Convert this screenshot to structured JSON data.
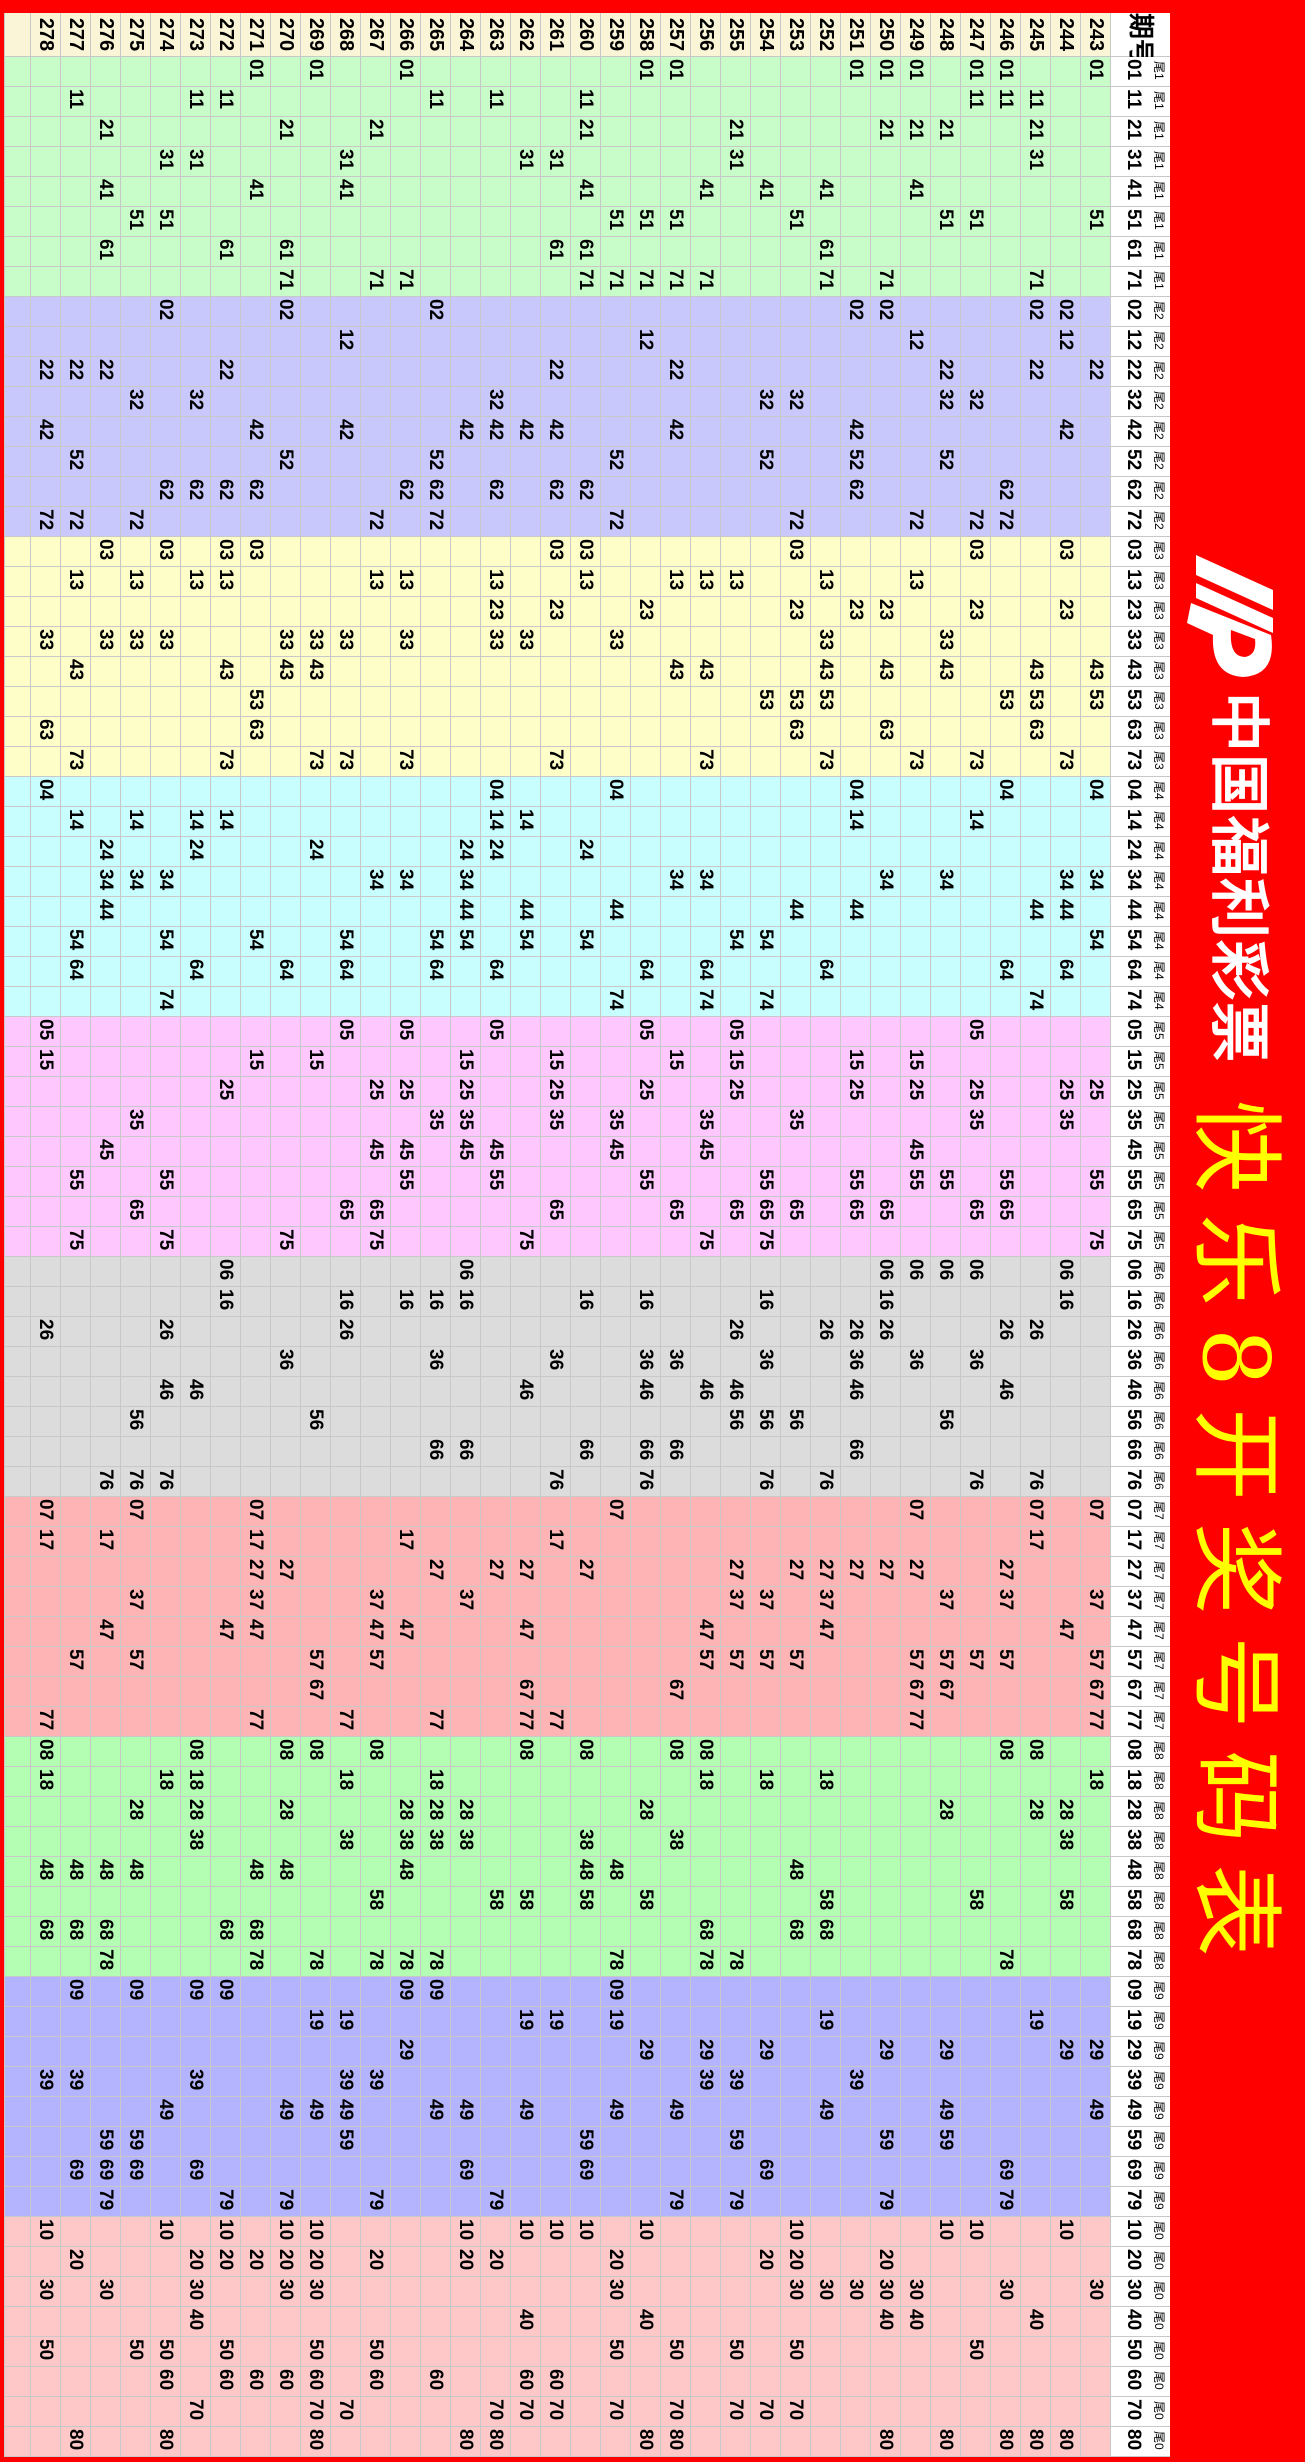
{
  "banner": {
    "logo_text": "cp",
    "organization": "中国福利彩票",
    "title": "快乐8开奖号码表"
  },
  "colors": {
    "banner_bg": "#ff0000",
    "title_color": "#ffff00",
    "period_bg": "#faf5d6",
    "tail_bg": [
      "#c8fcc8",
      "#c8c8fc",
      "#fefec8",
      "#c8fefe",
      "#fec8fe",
      "#dcdcdc",
      "#feb4b4",
      "#b4feb4",
      "#b4b4fe",
      "#fec8c8"
    ]
  },
  "table": {
    "period_header": "期号",
    "tail_groups": [
      {
        "label": "尾1",
        "numbers": [
          "01",
          "11",
          "21",
          "31",
          "41",
          "51",
          "61",
          "71"
        ]
      },
      {
        "label": "尾2",
        "numbers": [
          "02",
          "12",
          "22",
          "32",
          "42",
          "52",
          "62",
          "72"
        ]
      },
      {
        "label": "尾3",
        "numbers": [
          "03",
          "13",
          "23",
          "33",
          "43",
          "53",
          "63",
          "73"
        ]
      },
      {
        "label": "尾4",
        "numbers": [
          "04",
          "14",
          "24",
          "34",
          "44",
          "54",
          "64",
          "74"
        ]
      },
      {
        "label": "尾5",
        "numbers": [
          "05",
          "15",
          "25",
          "35",
          "45",
          "55",
          "65",
          "75"
        ]
      },
      {
        "label": "尾6",
        "numbers": [
          "06",
          "16",
          "26",
          "36",
          "46",
          "56",
          "66",
          "76"
        ]
      },
      {
        "label": "尾7",
        "numbers": [
          "07",
          "17",
          "27",
          "37",
          "47",
          "57",
          "67",
          "77"
        ]
      },
      {
        "label": "尾8",
        "numbers": [
          "08",
          "18",
          "28",
          "38",
          "48",
          "58",
          "68",
          "78"
        ]
      },
      {
        "label": "尾9",
        "numbers": [
          "09",
          "19",
          "29",
          "39",
          "49",
          "59",
          "69",
          "79"
        ]
      },
      {
        "label": "尾0",
        "numbers": [
          "10",
          "20",
          "30",
          "40",
          "50",
          "60",
          "70",
          "80"
        ]
      }
    ],
    "rows": [
      {
        "period": "243",
        "numbers": [
          "01",
          "51",
          "22",
          "43",
          "53",
          "04",
          "34",
          "54",
          "25",
          "55",
          "75",
          "07",
          "37",
          "57",
          "67",
          "77",
          "18",
          "29",
          "49",
          "30"
        ]
      },
      {
        "period": "244",
        "numbers": [
          "02",
          "12",
          "42",
          "03",
          "23",
          "73",
          "34",
          "44",
          "64",
          "25",
          "35",
          "06",
          "16",
          "47",
          "28",
          "38",
          "58",
          "29",
          "10",
          "80"
        ]
      },
      {
        "period": "245",
        "numbers": [
          "11",
          "21",
          "31",
          "71",
          "02",
          "22",
          "43",
          "53",
          "63",
          "44",
          "74",
          "26",
          "76",
          "07",
          "17",
          "08",
          "28",
          "19",
          "40",
          "80"
        ]
      },
      {
        "period": "246",
        "numbers": [
          "01",
          "11",
          "62",
          "72",
          "53",
          "04",
          "64",
          "55",
          "65",
          "26",
          "46",
          "27",
          "37",
          "57",
          "08",
          "78",
          "69",
          "79",
          "30",
          "80"
        ]
      },
      {
        "period": "247",
        "numbers": [
          "01",
          "11",
          "51",
          "32",
          "72",
          "03",
          "23",
          "73",
          "14",
          "05",
          "25",
          "35",
          "65",
          "06",
          "36",
          "76",
          "57",
          "58",
          "10",
          "50"
        ]
      },
      {
        "period": "248",
        "numbers": [
          "21",
          "51",
          "22",
          "32",
          "52",
          "33",
          "43",
          "34",
          "55",
          "06",
          "56",
          "37",
          "57",
          "67",
          "28",
          "29",
          "49",
          "59",
          "10",
          "80"
        ]
      },
      {
        "period": "249",
        "numbers": [
          "01",
          "21",
          "41",
          "12",
          "72",
          "13",
          "73",
          "15",
          "25",
          "45",
          "55",
          "06",
          "36",
          "07",
          "27",
          "57",
          "67",
          "77",
          "30",
          "40"
        ]
      },
      {
        "period": "250",
        "numbers": [
          "01",
          "21",
          "71",
          "02",
          "23",
          "43",
          "63",
          "34",
          "65",
          "06",
          "16",
          "26",
          "27",
          "29",
          "59",
          "79",
          "20",
          "30",
          "40",
          "80"
        ]
      },
      {
        "period": "251",
        "numbers": [
          "01",
          "02",
          "42",
          "52",
          "62",
          "23",
          "04",
          "14",
          "44",
          "15",
          "25",
          "55",
          "65",
          "26",
          "36",
          "46",
          "66",
          "27",
          "39",
          "30"
        ]
      },
      {
        "period": "252",
        "numbers": [
          "41",
          "61",
          "71",
          "13",
          "33",
          "43",
          "53",
          "73",
          "64",
          "26",
          "76",
          "27",
          "37",
          "47",
          "18",
          "58",
          "68",
          "19",
          "49",
          "30"
        ]
      },
      {
        "period": "253",
        "numbers": [
          "51",
          "32",
          "72",
          "03",
          "23",
          "53",
          "63",
          "44",
          "35",
          "65",
          "56",
          "27",
          "57",
          "48",
          "68",
          "10",
          "20",
          "30",
          "50",
          "70"
        ]
      },
      {
        "period": "254",
        "numbers": [
          "41",
          "32",
          "52",
          "53",
          "54",
          "74",
          "55",
          "65",
          "75",
          "16",
          "36",
          "56",
          "76",
          "37",
          "57",
          "18",
          "29",
          "69",
          "20",
          "70"
        ]
      },
      {
        "period": "255",
        "numbers": [
          "21",
          "31",
          "13",
          "54",
          "05",
          "15",
          "25",
          "65",
          "26",
          "46",
          "56",
          "27",
          "37",
          "57",
          "78",
          "39",
          "59",
          "79",
          "50",
          "70"
        ]
      },
      {
        "period": "256",
        "numbers": [
          "41",
          "71",
          "13",
          "43",
          "73",
          "34",
          "64",
          "74",
          "35",
          "45",
          "75",
          "46",
          "47",
          "57",
          "08",
          "18",
          "68",
          "78",
          "29",
          "39"
        ]
      },
      {
        "period": "257",
        "numbers": [
          "01",
          "51",
          "71",
          "22",
          "42",
          "13",
          "43",
          "34",
          "15",
          "65",
          "36",
          "66",
          "67",
          "08",
          "38",
          "49",
          "79",
          "50",
          "70",
          "80"
        ]
      },
      {
        "period": "258",
        "numbers": [
          "01",
          "51",
          "71",
          "12",
          "23",
          "64",
          "05",
          "25",
          "55",
          "16",
          "36",
          "46",
          "66",
          "76",
          "28",
          "58",
          "29",
          "10",
          "40",
          "80"
        ]
      },
      {
        "period": "259",
        "numbers": [
          "51",
          "71",
          "52",
          "72",
          "33",
          "04",
          "44",
          "74",
          "35",
          "45",
          "07",
          "48",
          "78",
          "09",
          "19",
          "49",
          "20",
          "30",
          "50",
          "70"
        ]
      },
      {
        "period": "260",
        "numbers": [
          "11",
          "21",
          "41",
          "61",
          "71",
          "62",
          "03",
          "13",
          "24",
          "54",
          "16",
          "66",
          "27",
          "08",
          "38",
          "48",
          "58",
          "59",
          "69",
          "10"
        ]
      },
      {
        "period": "261",
        "numbers": [
          "31",
          "61",
          "22",
          "42",
          "62",
          "03",
          "23",
          "73",
          "15",
          "25",
          "35",
          "65",
          "36",
          "76",
          "17",
          "77",
          "19",
          "10",
          "60",
          "70"
        ]
      },
      {
        "period": "262",
        "numbers": [
          "31",
          "42",
          "33",
          "14",
          "44",
          "54",
          "75",
          "46",
          "27",
          "47",
          "67",
          "77",
          "08",
          "58",
          "19",
          "49",
          "10",
          "40",
          "60",
          "70"
        ]
      },
      {
        "period": "263",
        "numbers": [
          "11",
          "32",
          "42",
          "62",
          "13",
          "23",
          "33",
          "04",
          "14",
          "24",
          "64",
          "05",
          "45",
          "55",
          "27",
          "58",
          "79",
          "20",
          "70",
          "80"
        ]
      },
      {
        "period": "264",
        "numbers": [
          "42",
          "24",
          "34",
          "44",
          "54",
          "15",
          "25",
          "35",
          "45",
          "06",
          "16",
          "66",
          "37",
          "28",
          "38",
          "69",
          "49",
          "10",
          "20",
          "80"
        ]
      },
      {
        "period": "265",
        "numbers": [
          "11",
          "02",
          "52",
          "62",
          "72",
          "54",
          "64",
          "35",
          "16",
          "36",
          "66",
          "27",
          "77",
          "18",
          "28",
          "38",
          "78",
          "09",
          "49",
          "60"
        ]
      },
      {
        "period": "266",
        "numbers": [
          "01",
          "71",
          "62",
          "13",
          "33",
          "73",
          "34",
          "05",
          "25",
          "45",
          "55",
          "16",
          "17",
          "47",
          "28",
          "38",
          "48",
          "78",
          "09",
          "29"
        ]
      },
      {
        "period": "267",
        "numbers": [
          "21",
          "71",
          "72",
          "13",
          "34",
          "25",
          "45",
          "65",
          "75",
          "37",
          "47",
          "57",
          "08",
          "58",
          "78",
          "39",
          "79",
          "20",
          "50",
          "60"
        ]
      },
      {
        "period": "268",
        "numbers": [
          "31",
          "41",
          "12",
          "42",
          "33",
          "73",
          "54",
          "64",
          "05",
          "65",
          "16",
          "26",
          "77",
          "18",
          "38",
          "19",
          "39",
          "49",
          "59",
          "70"
        ]
      },
      {
        "period": "269",
        "numbers": [
          "01",
          "33",
          "43",
          "73",
          "24",
          "15",
          "56",
          "57",
          "67",
          "08",
          "78",
          "19",
          "49",
          "10",
          "20",
          "30",
          "50",
          "60",
          "70",
          "80"
        ]
      },
      {
        "period": "270",
        "numbers": [
          "21",
          "61",
          "71",
          "02",
          "52",
          "33",
          "43",
          "64",
          "75",
          "36",
          "27",
          "08",
          "28",
          "48",
          "49",
          "79",
          "10",
          "20",
          "30",
          "60"
        ]
      },
      {
        "period": "271",
        "numbers": [
          "01",
          "41",
          "42",
          "62",
          "03",
          "53",
          "63",
          "54",
          "15",
          "07",
          "17",
          "27",
          "37",
          "47",
          "77",
          "48",
          "68",
          "78",
          "20",
          "60"
        ]
      },
      {
        "period": "272",
        "numbers": [
          "11",
          "61",
          "22",
          "62",
          "03",
          "13",
          "43",
          "73",
          "14",
          "25",
          "06",
          "16",
          "47",
          "68",
          "09",
          "79",
          "10",
          "20",
          "50",
          "60"
        ]
      },
      {
        "period": "273",
        "numbers": [
          "11",
          "31",
          "32",
          "62",
          "13",
          "14",
          "24",
          "64",
          "46",
          "08",
          "18",
          "28",
          "38",
          "09",
          "39",
          "69",
          "20",
          "30",
          "40",
          "70"
        ]
      },
      {
        "period": "274",
        "numbers": [
          "31",
          "51",
          "02",
          "62",
          "03",
          "33",
          "34",
          "54",
          "74",
          "55",
          "75",
          "26",
          "46",
          "76",
          "18",
          "49",
          "10",
          "50",
          "60",
          "80"
        ]
      },
      {
        "period": "275",
        "numbers": [
          "51",
          "32",
          "72",
          "13",
          "33",
          "14",
          "34",
          "35",
          "65",
          "56",
          "76",
          "07",
          "37",
          "57",
          "28",
          "48",
          "09",
          "59",
          "69",
          "50"
        ]
      },
      {
        "period": "276",
        "numbers": [
          "21",
          "41",
          "61",
          "22",
          "03",
          "33",
          "24",
          "34",
          "44",
          "45",
          "76",
          "17",
          "47",
          "48",
          "68",
          "78",
          "59",
          "69",
          "79",
          "30"
        ]
      },
      {
        "period": "277",
        "numbers": [
          "11",
          "22",
          "52",
          "72",
          "13",
          "43",
          "73",
          "14",
          "54",
          "64",
          "55",
          "75",
          "57",
          "48",
          "68",
          "09",
          "39",
          "69",
          "20",
          "80"
        ]
      },
      {
        "period": "278",
        "numbers": [
          "22",
          "42",
          "72",
          "33",
          "63",
          "04",
          "05",
          "15",
          "26",
          "07",
          "17",
          "77",
          "08",
          "18",
          "48",
          "68",
          "39",
          "10",
          "30",
          "50"
        ]
      }
    ]
  }
}
